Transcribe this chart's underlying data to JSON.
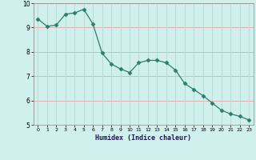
{
  "x": [
    0,
    1,
    2,
    3,
    4,
    5,
    6,
    7,
    8,
    9,
    10,
    11,
    12,
    13,
    14,
    15,
    16,
    17,
    18,
    19,
    20,
    21,
    22,
    23
  ],
  "y": [
    9.35,
    9.05,
    9.1,
    9.55,
    9.6,
    9.75,
    9.15,
    7.95,
    7.5,
    7.3,
    7.15,
    7.55,
    7.65,
    7.65,
    7.55,
    7.25,
    6.7,
    6.45,
    6.2,
    5.9,
    5.6,
    5.45,
    5.35,
    5.2
  ],
  "line_color": "#2d7d6e",
  "marker": "D",
  "marker_size": 2.5,
  "background_color": "#cff0ec",
  "grid_color_h": "#e8b0b0",
  "grid_color_v": "#b8ddd8",
  "xlabel": "Humidex (Indice chaleur)",
  "ylim": [
    5,
    10
  ],
  "xlim": [
    -0.5,
    23.5
  ],
  "yticks": [
    5,
    6,
    7,
    8,
    9,
    10
  ],
  "xticks": [
    0,
    1,
    2,
    3,
    4,
    5,
    6,
    7,
    8,
    9,
    10,
    11,
    12,
    13,
    14,
    15,
    16,
    17,
    18,
    19,
    20,
    21,
    22,
    23
  ]
}
